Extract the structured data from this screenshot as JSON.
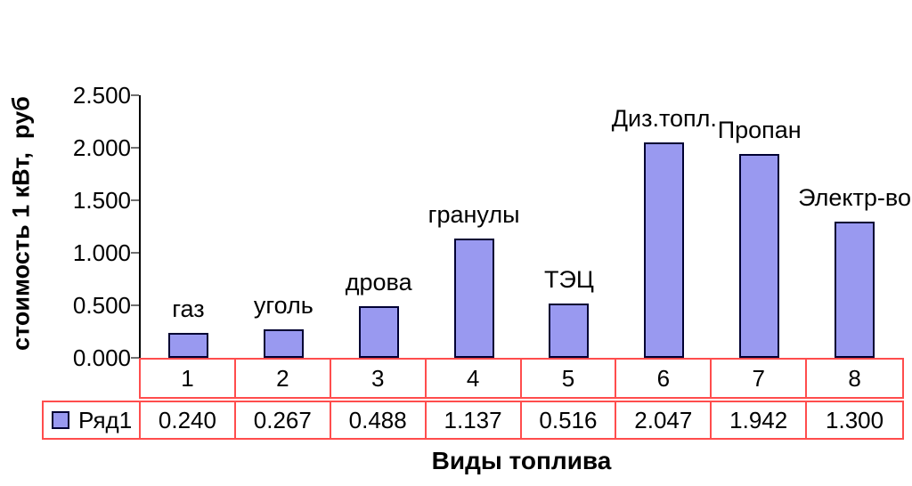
{
  "chart_data": {
    "type": "bar",
    "title": "",
    "xlabel": "Виды топлива",
    "ylabel": "стоимость 1 кВт,  руб",
    "categories": [
      "1",
      "2",
      "3",
      "4",
      "5",
      "6",
      "7",
      "8"
    ],
    "bar_labels": [
      "газ",
      "уголь",
      "дрова",
      "гранулы",
      "ТЭЦ",
      "Диз.топл.",
      "Пропан",
      "Электр-во"
    ],
    "series": [
      {
        "name": "Ряд1",
        "values": [
          0.24,
          0.267,
          0.488,
          1.137,
          0.516,
          2.047,
          1.942,
          1.3
        ]
      }
    ],
    "value_decimals": 3,
    "y_ticks": [
      "0.000",
      "0.500",
      "1.000",
      "1.500",
      "2.000",
      "2.500"
    ],
    "ylim": [
      0,
      2.5
    ],
    "grid": false,
    "legend_position": "data-table-left",
    "colors": {
      "bar_fill": "#9999F0",
      "bar_border": "#000033",
      "table_border": "#FF4D4D",
      "axis_line": "#000000",
      "tick": "#707070",
      "text": "#000000",
      "background": "#FFFFFF"
    }
  }
}
